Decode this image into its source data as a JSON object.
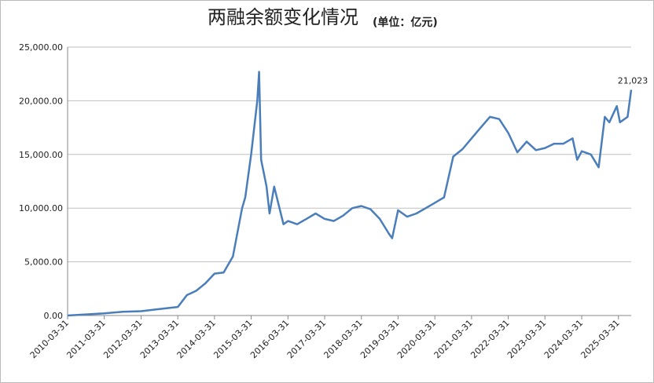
{
  "chart_data": {
    "type": "line",
    "title": "两融余额变化情况",
    "subtitle": "(单位：亿元)",
    "x": [
      "2010-03-31",
      "2010-09-30",
      "2011-03-31",
      "2011-09-30",
      "2012-03-31",
      "2012-09-30",
      "2013-03-31",
      "2013-06-30",
      "2013-09-30",
      "2013-12-31",
      "2014-03-31",
      "2014-06-30",
      "2014-09-30",
      "2014-12-31",
      "2015-01-31",
      "2015-03-31",
      "2015-05-31",
      "2015-06-18",
      "2015-07-08",
      "2015-08-31",
      "2015-09-30",
      "2015-11-15",
      "2016-02-15",
      "2016-03-31",
      "2016-06-30",
      "2016-09-30",
      "2016-12-31",
      "2017-03-31",
      "2017-06-30",
      "2017-09-30",
      "2017-12-31",
      "2018-03-31",
      "2018-06-30",
      "2018-09-30",
      "2018-12-31",
      "2019-01-31",
      "2019-03-31",
      "2019-06-30",
      "2019-09-30",
      "2019-12-31",
      "2020-03-31",
      "2020-06-30",
      "2020-09-30",
      "2020-12-31",
      "2021-03-31",
      "2021-06-30",
      "2021-09-30",
      "2021-12-31",
      "2022-03-31",
      "2022-06-30",
      "2022-09-30",
      "2022-12-31",
      "2023-03-31",
      "2023-06-30",
      "2023-09-30",
      "2023-12-31",
      "2024-02-15",
      "2024-03-31",
      "2024-06-30",
      "2024-09-15",
      "2024-11-15",
      "2024-12-31",
      "2025-03-15",
      "2025-04-15",
      "2025-06-30",
      "2025-08-05"
    ],
    "values": [
      0,
      100,
      200,
      350,
      400,
      600,
      800,
      1900,
      2300,
      3000,
      3900,
      4000,
      5500,
      10000,
      11000,
      15000,
      20000,
      22700,
      14500,
      12000,
      9500,
      12000,
      8500,
      8800,
      8500,
      9000,
      9500,
      9000,
      8800,
      9300,
      10000,
      10200,
      9900,
      9000,
      7600,
      7200,
      9800,
      9200,
      9500,
      10000,
      10500,
      11000,
      14800,
      15500,
      16500,
      17500,
      18500,
      18300,
      17000,
      15200,
      16200,
      15400,
      15600,
      16000,
      16000,
      16500,
      14500,
      15300,
      15000,
      13800,
      18500,
      18000,
      19500,
      18000,
      18500,
      21023
    ],
    "value_labels": [
      null,
      null,
      null,
      null,
      null,
      null,
      null,
      null,
      null,
      null,
      null,
      null,
      null,
      null,
      null,
      null,
      null,
      null,
      null,
      null,
      null,
      null,
      null,
      null,
      null,
      null,
      null,
      null,
      null,
      null,
      null,
      null,
      null,
      null,
      null,
      null,
      null,
      null,
      null,
      null,
      null,
      null,
      null,
      null,
      null,
      null,
      null,
      null,
      null,
      null,
      null,
      null,
      null,
      null,
      null,
      null,
      null,
      null,
      null,
      null,
      null,
      null,
      null,
      null,
      null,
      "21,023"
    ],
    "color": "#4a7ebb",
    "xlim": [
      "2010-03-31",
      "2025-08-05"
    ],
    "xticks": [
      "2010-03-31",
      "2011-03-31",
      "2012-03-31",
      "2013-03-31",
      "2014-03-31",
      "2015-03-31",
      "2016-03-31",
      "2017-03-31",
      "2018-03-31",
      "2019-03-31",
      "2020-03-31",
      "2021-03-31",
      "2022-03-31",
      "2023-03-31",
      "2024-03-31",
      "2025-03-31"
    ],
    "ylim": [
      0,
      25000
    ],
    "yticks": [
      {
        "value": 0,
        "label": "0.00"
      },
      {
        "value": 5000,
        "label": "5,000.00"
      },
      {
        "value": 10000,
        "label": "10,000.00"
      },
      {
        "value": 15000,
        "label": "15,000.00"
      },
      {
        "value": 20000,
        "label": "20,000.00"
      },
      {
        "value": 25000,
        "label": "25,000.00"
      }
    ],
    "grid": true
  }
}
